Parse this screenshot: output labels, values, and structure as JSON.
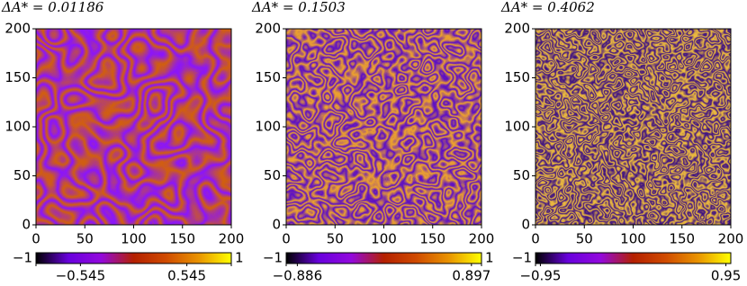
{
  "chart_data": [
    {
      "type": "heatmap",
      "title": "ΔA* = 0.01186",
      "xlim": [
        0,
        200
      ],
      "ylim": [
        0,
        200
      ],
      "xticks": [
        0,
        50,
        100,
        150,
        200
      ],
      "yticks": [
        0,
        50,
        100,
        150,
        200
      ],
      "colors": [
        "#8a14ff",
        "#d2600c"
      ],
      "colorbar": {
        "clim": [
          -1,
          1
        ],
        "colormap": [
          "#000000",
          "#6801dd",
          "#9309dd",
          "#b42000",
          "#d04b00",
          "#e99400",
          "#ffff00"
        ],
        "ticks": [
          {
            "value": -1,
            "label": "−1"
          },
          {
            "value": -0.545,
            "label": "−0.545"
          },
          0.545,
          1
        ]
      }
    },
    {
      "type": "heatmap",
      "title": "ΔA* = 0.1503",
      "xlim": [
        0,
        200
      ],
      "ylim": [
        0,
        200
      ],
      "xticks": [
        0,
        50,
        100,
        150,
        200
      ],
      "yticks": [
        0,
        50,
        100,
        150,
        200
      ],
      "colors": [
        "#5a0cc8",
        "#f0a52a"
      ],
      "colorbar": {
        "clim": [
          -1,
          1
        ],
        "colormap": [
          "#000000",
          "#6801dd",
          "#9309dd",
          "#b42000",
          "#d04b00",
          "#e99400",
          "#ffff00"
        ],
        "ticks": [
          {
            "value": -1,
            "label": "−1"
          },
          {
            "value": -0.886,
            "label": "−0.886"
          },
          0.897,
          1
        ]
      }
    },
    {
      "type": "heatmap",
      "title": "ΔA* = 0.4062",
      "xlim": [
        0,
        200
      ],
      "ylim": [
        0,
        200
      ],
      "xticks": [
        0,
        50,
        100,
        150,
        200
      ],
      "yticks": [
        0,
        50,
        100,
        150,
        200
      ],
      "colors": [
        "#380c86",
        "#f5c23a"
      ],
      "colorbar": {
        "clim": [
          -1,
          1
        ],
        "colormap": [
          "#000000",
          "#6801dd",
          "#9309dd",
          "#b42000",
          "#d04b00",
          "#e99400",
          "#ffff00"
        ],
        "ticks": [
          {
            "value": -1,
            "label": "−1"
          },
          {
            "value": -0.95,
            "label": "−0.95"
          },
          0.95
        ]
      }
    }
  ]
}
